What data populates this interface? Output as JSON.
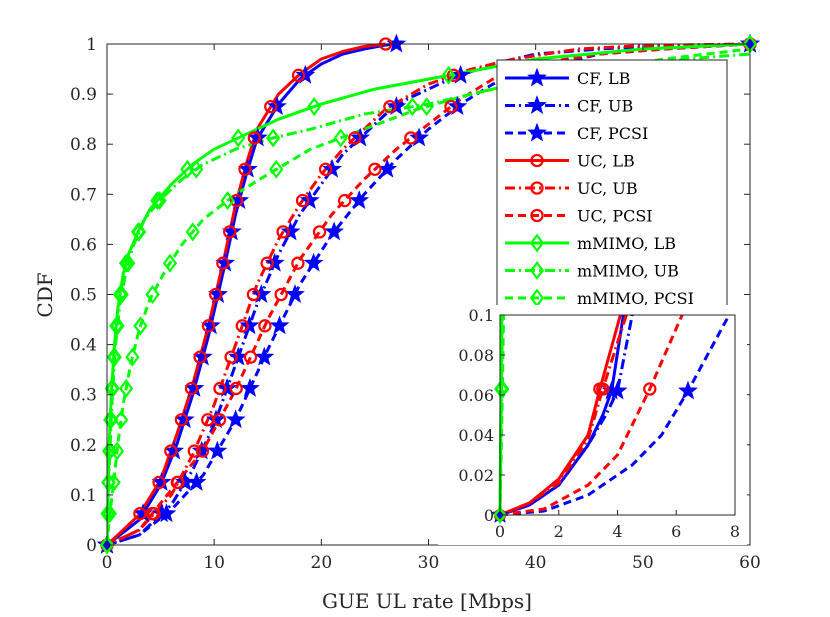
{
  "chart_data": {
    "type": "line",
    "title": "",
    "xlabel": "GUE UL rate [Mbps]",
    "ylabel": "CDF",
    "xlim": [
      0,
      60
    ],
    "ylim": [
      0,
      1
    ],
    "xticks": [
      "0",
      "10",
      "20",
      "30",
      "40",
      "50",
      "60"
    ],
    "yticks": [
      "0",
      "0.1",
      "0.2",
      "0.3",
      "0.4",
      "0.5",
      "0.6",
      "0.7",
      "0.8",
      "0.9",
      "1"
    ],
    "legend_position": "top-right",
    "colors": {
      "blue": "#0000ff",
      "red": "#ff0000",
      "green": "#00ff00"
    },
    "series": [
      {
        "name": "CF, LB",
        "color": "blue",
        "dash": "solid",
        "marker": "star",
        "x": [
          0,
          3,
          5,
          6.5,
          8,
          9.5,
          11,
          12,
          13,
          14,
          16,
          18,
          20,
          22,
          24,
          26,
          27
        ],
        "y": [
          0,
          0.05,
          0.12,
          0.2,
          0.3,
          0.42,
          0.56,
          0.66,
          0.74,
          0.81,
          0.88,
          0.93,
          0.96,
          0.98,
          0.99,
          0.998,
          1
        ]
      },
      {
        "name": "CF, UB",
        "color": "blue",
        "dash": "dashdot",
        "marker": "star",
        "x": [
          0,
          3,
          6,
          8,
          10,
          12,
          14,
          16,
          18,
          20,
          22,
          24,
          26,
          28,
          32,
          36,
          40,
          46,
          52,
          60
        ],
        "y": [
          0,
          0.02,
          0.08,
          0.15,
          0.24,
          0.36,
          0.48,
          0.58,
          0.66,
          0.72,
          0.78,
          0.82,
          0.86,
          0.89,
          0.93,
          0.96,
          0.98,
          0.99,
          0.997,
          1
        ]
      },
      {
        "name": "CF, PCSI",
        "color": "blue",
        "dash": "dashed",
        "marker": "star",
        "x": [
          0,
          3,
          6,
          9,
          12,
          15,
          18,
          21,
          24,
          27,
          30,
          33,
          36,
          40,
          46,
          52,
          60
        ],
        "y": [
          0,
          0.02,
          0.07,
          0.14,
          0.25,
          0.39,
          0.52,
          0.62,
          0.7,
          0.77,
          0.83,
          0.88,
          0.92,
          0.95,
          0.98,
          0.99,
          1
        ]
      },
      {
        "name": "UC, LB",
        "color": "red",
        "dash": "solid",
        "marker": "circle",
        "x": [
          0,
          3,
          5,
          6.5,
          8,
          9.5,
          11,
          12,
          13,
          14,
          16,
          18,
          20,
          22,
          24,
          26
        ],
        "y": [
          0,
          0.06,
          0.13,
          0.22,
          0.32,
          0.44,
          0.58,
          0.68,
          0.76,
          0.83,
          0.9,
          0.94,
          0.97,
          0.985,
          0.995,
          1
        ]
      },
      {
        "name": "UC, UB",
        "color": "red",
        "dash": "dashdot",
        "marker": "circle",
        "x": [
          0,
          3,
          6,
          8,
          10,
          12,
          14,
          16,
          18,
          20,
          22,
          24,
          26,
          30,
          34,
          38,
          44,
          50,
          60
        ],
        "y": [
          0,
          0.03,
          0.1,
          0.18,
          0.28,
          0.4,
          0.52,
          0.61,
          0.68,
          0.74,
          0.79,
          0.83,
          0.87,
          0.92,
          0.95,
          0.97,
          0.99,
          0.997,
          1
        ]
      },
      {
        "name": "UC, PCSI",
        "color": "red",
        "dash": "dashed",
        "marker": "circle",
        "x": [
          0,
          3,
          6,
          9,
          12,
          15,
          18,
          21,
          24,
          27,
          30,
          33,
          36,
          40,
          46,
          52,
          60
        ],
        "y": [
          0,
          0.03,
          0.11,
          0.19,
          0.31,
          0.45,
          0.57,
          0.66,
          0.73,
          0.79,
          0.84,
          0.89,
          0.93,
          0.96,
          0.98,
          0.99,
          1
        ]
      },
      {
        "name": "mMIMO, LB",
        "color": "green",
        "dash": "solid",
        "marker": "diamond",
        "x": [
          0,
          0.1,
          0.2,
          0.4,
          0.7,
          1,
          1.5,
          2,
          3,
          4,
          6,
          8,
          10,
          13,
          16,
          20,
          25,
          30,
          35,
          40,
          45,
          50,
          55,
          60
        ],
        "y": [
          0,
          0.1,
          0.2,
          0.3,
          0.4,
          0.47,
          0.54,
          0.58,
          0.63,
          0.67,
          0.72,
          0.76,
          0.79,
          0.82,
          0.85,
          0.88,
          0.91,
          0.93,
          0.95,
          0.97,
          0.98,
          0.99,
          0.995,
          1
        ]
      },
      {
        "name": "mMIMO, UB",
        "color": "green",
        "dash": "dashdot",
        "marker": "diamond",
        "x": [
          0,
          0.1,
          0.3,
          0.5,
          0.8,
          1.2,
          1.8,
          2.5,
          3.5,
          5,
          7,
          9,
          12,
          15,
          19,
          24,
          30,
          36,
          42,
          48,
          54,
          60
        ],
        "y": [
          0,
          0.1,
          0.2,
          0.3,
          0.4,
          0.48,
          0.55,
          0.6,
          0.65,
          0.69,
          0.73,
          0.76,
          0.79,
          0.81,
          0.83,
          0.86,
          0.88,
          0.91,
          0.93,
          0.95,
          0.97,
          0.98
        ]
      },
      {
        "name": "mMIMO, PCSI",
        "color": "green",
        "dash": "dashed",
        "marker": "diamond",
        "x": [
          0,
          0.2,
          0.6,
          1,
          1.5,
          2.2,
          3,
          4,
          5.5,
          7,
          9,
          12,
          15,
          19,
          24,
          29,
          34,
          40,
          46,
          52,
          56,
          60
        ],
        "y": [
          0,
          0.05,
          0.12,
          0.2,
          0.28,
          0.36,
          0.43,
          0.49,
          0.55,
          0.6,
          0.65,
          0.7,
          0.74,
          0.79,
          0.83,
          0.87,
          0.9,
          0.93,
          0.95,
          0.97,
          0.98,
          0.99
        ]
      }
    ],
    "inset": {
      "xlim": [
        0,
        8
      ],
      "ylim": [
        0,
        0.1
      ],
      "xticks": [
        "0",
        "2",
        "4",
        "6",
        "8"
      ],
      "yticks": [
        "0",
        "0.02",
        "0.04",
        "0.06",
        "0.08",
        "0.1"
      ],
      "series": [
        {
          "name": "CF, LB",
          "color": "blue",
          "dash": "solid",
          "marker": "star",
          "x": [
            0,
            1,
            2,
            3,
            3.5,
            3.8,
            4.2
          ],
          "y": [
            0,
            0.005,
            0.015,
            0.035,
            0.05,
            0.062,
            0.1
          ]
        },
        {
          "name": "CF, UB",
          "color": "blue",
          "dash": "dashdot",
          "marker": "star",
          "x": [
            0,
            1,
            2,
            3,
            3.6,
            4,
            4.5
          ],
          "y": [
            0,
            0.005,
            0.015,
            0.035,
            0.05,
            0.062,
            0.1
          ]
        },
        {
          "name": "CF, PCSI",
          "color": "blue",
          "dash": "dashed",
          "marker": "star",
          "x": [
            0,
            1.5,
            3,
            4.5,
            5.5,
            6.4,
            7.8
          ],
          "y": [
            0,
            0.002,
            0.01,
            0.025,
            0.04,
            0.062,
            0.1
          ]
        },
        {
          "name": "UC, LB",
          "color": "red",
          "dash": "solid",
          "marker": "circle",
          "x": [
            0,
            1,
            2,
            3,
            3.4,
            4.1
          ],
          "y": [
            0,
            0.006,
            0.018,
            0.04,
            0.063,
            0.1
          ]
        },
        {
          "name": "UC, UB",
          "color": "red",
          "dash": "dashdot",
          "marker": "circle",
          "x": [
            0,
            1,
            2,
            3,
            3.5,
            4.3
          ],
          "y": [
            0,
            0.006,
            0.016,
            0.038,
            0.063,
            0.1
          ]
        },
        {
          "name": "UC, PCSI",
          "color": "red",
          "dash": "dashed",
          "marker": "circle",
          "x": [
            0,
            1.5,
            3,
            4,
            5.1,
            6.2
          ],
          "y": [
            0,
            0.003,
            0.015,
            0.03,
            0.063,
            0.1
          ]
        },
        {
          "name": "mMIMO, LB",
          "color": "green",
          "dash": "solid",
          "marker": "diamond",
          "x": [
            0,
            0.02,
            0.04,
            0.06
          ],
          "y": [
            0,
            0.04,
            0.063,
            0.1
          ]
        },
        {
          "name": "mMIMO, UB",
          "color": "green",
          "dash": "dashdot",
          "marker": "diamond",
          "x": [
            0,
            0.03,
            0.05,
            0.08
          ],
          "y": [
            0,
            0.04,
            0.063,
            0.1
          ]
        },
        {
          "name": "mMIMO, PCSI",
          "color": "green",
          "dash": "dashed",
          "marker": "diamond",
          "x": [
            0,
            0.05,
            0.08,
            0.12
          ],
          "y": [
            0,
            0.04,
            0.063,
            0.1
          ]
        }
      ]
    }
  }
}
